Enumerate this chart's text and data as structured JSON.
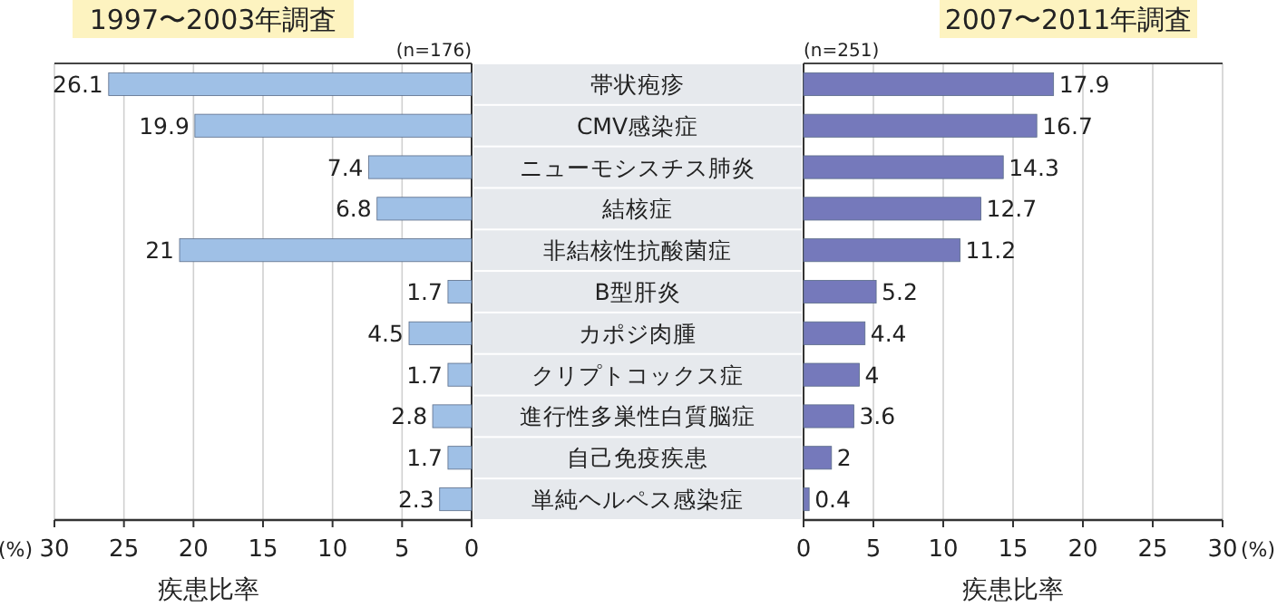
{
  "chart_data": [
    {
      "type": "bar",
      "orientation": "horizontal",
      "title": "1997〜2003年調査",
      "subtitle": "(n=176)",
      "xlabel": "疾患比率",
      "annotations": [
        "(%)"
      ],
      "categories": [
        "帯状疱疹",
        "CMV感染症",
        "ニューモシスチス肺炎",
        "結核症",
        "非結核性抗酸菌症",
        "B型肝炎",
        "カポジ肉腫",
        "クリプトコックス症",
        "進行性多巣性白質脳症",
        "自己免疫疾患",
        "単純ヘルペス感染症"
      ],
      "values": [
        26.1,
        19.9,
        7.4,
        6.8,
        21,
        1.7,
        4.5,
        1.7,
        2.8,
        1.7,
        2.3
      ],
      "color": "#9fc0e6",
      "xlim": [
        30,
        0
      ],
      "xticks": [
        30,
        25,
        20,
        15,
        10,
        5,
        0
      ],
      "grid": "x",
      "data_labels": true
    },
    {
      "type": "bar",
      "orientation": "horizontal",
      "title": "2007〜2011年調査",
      "subtitle": "(n=251)",
      "xlabel": "疾患比率",
      "annotations": [
        "(%)"
      ],
      "categories": [
        null,
        null,
        null,
        null,
        null,
        null,
        null,
        null,
        null,
        null,
        null
      ],
      "values": [
        17.9,
        16.7,
        14.3,
        12.7,
        11.2,
        5.2,
        4.4,
        4,
        3.6,
        2,
        0.4
      ],
      "color": "#7579bb",
      "xlim": [
        0,
        30
      ],
      "xticks": [
        0,
        5,
        10,
        15,
        20,
        25,
        30
      ],
      "grid": "x",
      "data_labels": true,
      "tick_labels": "x"
    }
  ]
}
